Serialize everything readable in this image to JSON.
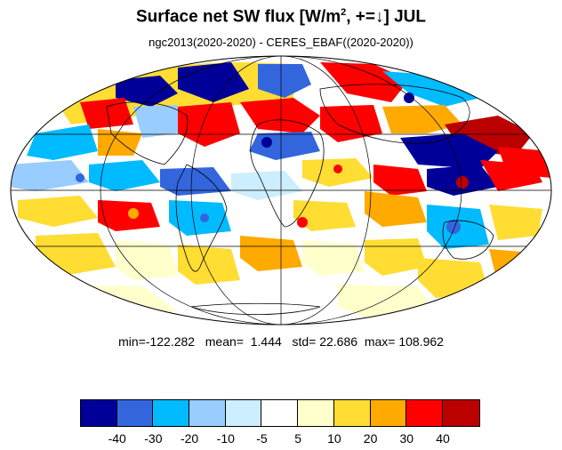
{
  "title_main": "Surface net SW flux [W/m",
  "title_sup": "2",
  "title_tail": ", +=↓]  JUL",
  "subtitle": "ngc2013(2020-2020) - CERES_EBAF((2020-2020))",
  "stats": {
    "min_label": "min=",
    "min": "-122.282",
    "mean_label": "mean=",
    "mean": "1.444",
    "std_label": "std=",
    "std": "22.686",
    "max_label": "max=",
    "max": "108.962"
  },
  "colorbar": {
    "colors": [
      "#000099",
      "#3366dd",
      "#00bbff",
      "#99ccff",
      "#cceeff",
      "#ffffff",
      "#ffffcc",
      "#ffdd33",
      "#ffaa00",
      "#ff0000",
      "#bb0000"
    ],
    "labels": [
      "-40",
      "-30",
      "-20",
      "-10",
      "-5",
      "5",
      "10",
      "20",
      "30",
      "40"
    ]
  },
  "map": {
    "projection": "mollweide",
    "ocean_color": "#ffffff",
    "coastline_color": "#000000",
    "grid_color": "#000000"
  }
}
